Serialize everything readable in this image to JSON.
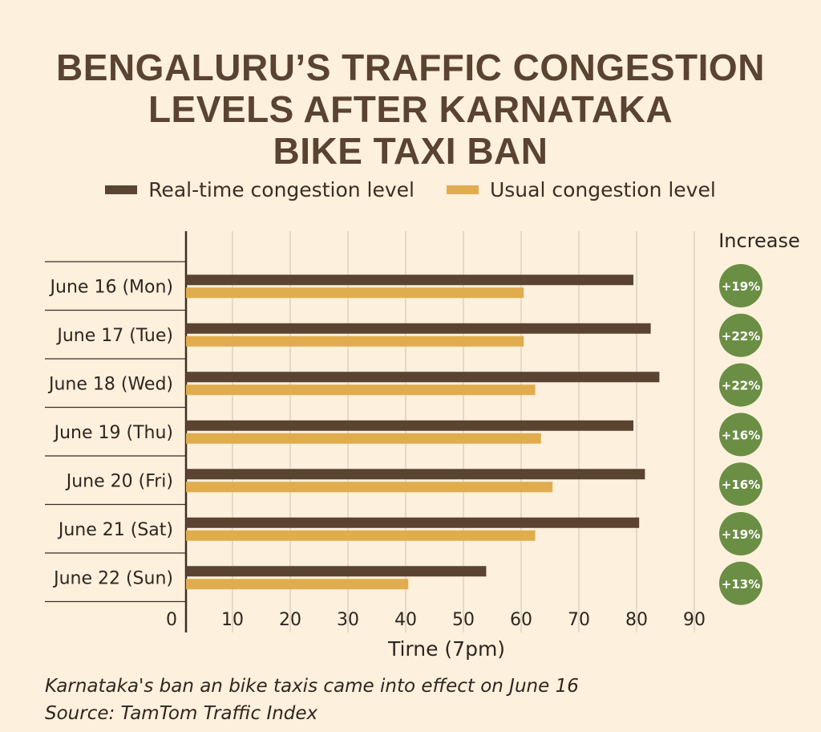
{
  "chart_data": {
    "type": "bar",
    "orientation": "horizontal",
    "title_lines": [
      "BENGALURU’S TRAFFIC CONGESTION",
      "LEVELS AFTER KARNATAKA",
      "BIKE TAXI BAN"
    ],
    "categories": [
      "June 16 (Mon)",
      "June 17 (Tue)",
      "June 18 (Wed)",
      "June 19 (Thu)",
      "June 20 (Fri)",
      "June 21 (Sat)",
      "June 22 (Sun)"
    ],
    "series": [
      {
        "name": "Real-time congestion level",
        "color": "#5a4330",
        "values": [
          77.5,
          80.5,
          82,
          77.5,
          79.5,
          78.5,
          52
        ]
      },
      {
        "name": "Usual congestion level",
        "color": "#e0ac4e",
        "values": [
          58.5,
          58.5,
          60.5,
          61.5,
          63.5,
          60.5,
          38.5
        ]
      }
    ],
    "increase_header": "Increase",
    "increase_labels": [
      "+19%",
      "+22%",
      "+22%",
      "+16%",
      "+16%",
      "+19%",
      "+13%"
    ],
    "increase_color": "#6b8e45",
    "xticks": [
      0,
      10,
      20,
      30,
      40,
      50,
      60,
      70,
      80,
      90
    ],
    "xlim": [
      0,
      90
    ],
    "xlabel": "Tirne (7pm)",
    "grid": true
  },
  "footnotes": {
    "note": "Karnataka's ban an bike taxis came into effect on June 16",
    "source": "Source: TamTom Traffic Index"
  }
}
